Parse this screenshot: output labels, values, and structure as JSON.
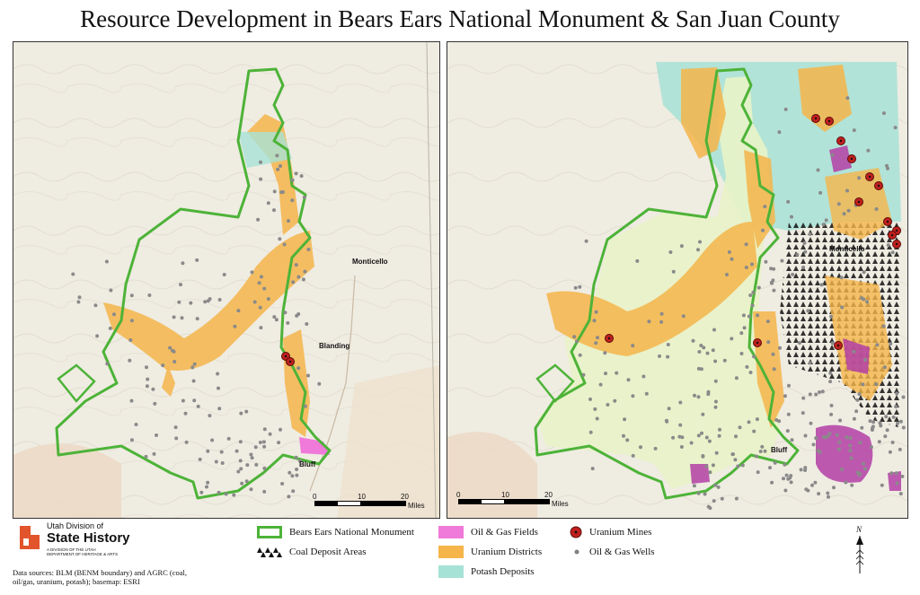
{
  "title": "Resource Development in Bears Ears National Monument & San Juan County",
  "places": {
    "monticello": "Monticello",
    "blanding": "Blanding",
    "bluff": "Bluff"
  },
  "scale": {
    "ticks": [
      "0",
      "10",
      "20"
    ],
    "unit": "Miles"
  },
  "legend": {
    "items": [
      {
        "key": "boundary",
        "label": "Bears Ears National Monument",
        "color": "#4db338"
      },
      {
        "key": "coal",
        "label": "Coal Deposit Areas",
        "color": "#000000"
      },
      {
        "key": "oilgas_fields",
        "label": "Oil & Gas Fields",
        "color": "#f07ad9"
      },
      {
        "key": "uranium_districts",
        "label": "Uranium Districts",
        "color": "#f5b54a"
      },
      {
        "key": "potash",
        "label": "Potash Deposits",
        "color": "#a7e2d6"
      },
      {
        "key": "uranium_mines",
        "label": "Uranium Mines",
        "color": "#c0201e"
      },
      {
        "key": "wells",
        "label": "Oil & Gas Wells",
        "color": "#808080"
      }
    ]
  },
  "logo": {
    "top": "Utah Division of",
    "main": "State History",
    "sub": "A DIVISION OF THE UTAH DEPARTMENT OF HERITAGE & ARTS"
  },
  "north_label": "N",
  "sources": "Data sources: BLM (BENM boundary) and AGRC (coal, oil/gas, uranium, potash); basemap: ESRI",
  "colors": {
    "basemap": "#efece2",
    "monument_fill_right": "#e8f3c8",
    "potash": "#a7e2d6",
    "uranium": "#f5b54a",
    "oilgas": "#b33fa6",
    "wells": "#8a8a8a",
    "boundary": "#4db338"
  }
}
